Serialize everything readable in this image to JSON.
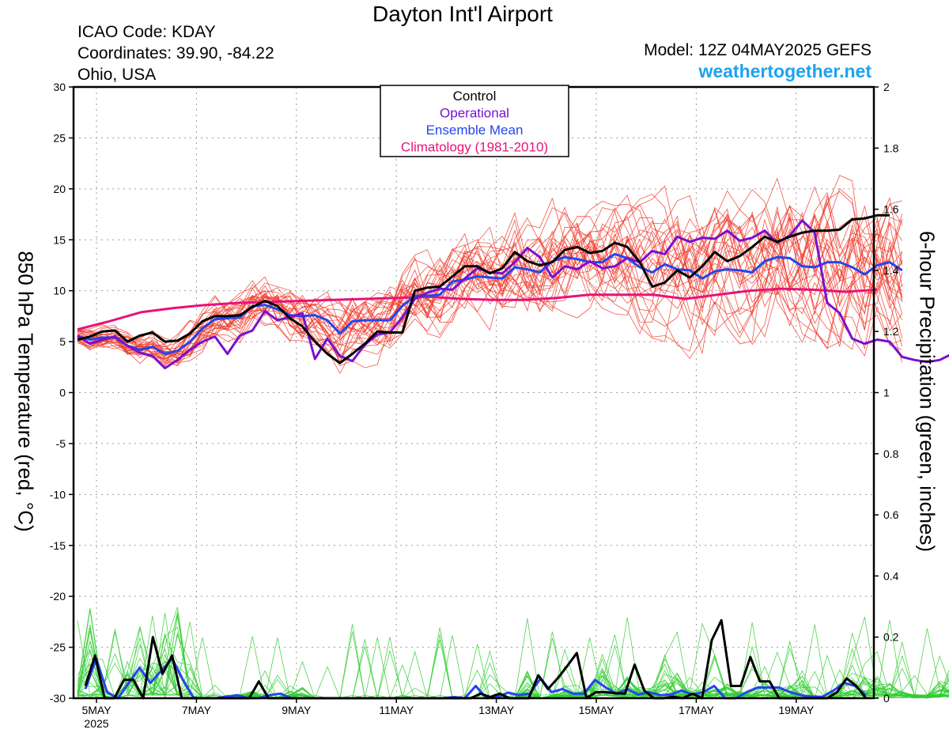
{
  "header": {
    "title": "Dayton Int'l Airport",
    "icao": "ICAO Code: KDAY",
    "coords": "Coordinates: 39.90, -84.22",
    "region": "Ohio, USA",
    "model": "Model: 12Z 04MAY2025 GEFS",
    "site": "weathertogether.net"
  },
  "colors": {
    "control": "#000000",
    "operational": "#7a10d0",
    "ensemble_mean": "#2445ee",
    "climatology": "#e8127a",
    "members_temp": "#f03a2a",
    "members_precip": "#33cc33",
    "site": "#1fa2ee"
  },
  "chart_data": {
    "type": "line",
    "x_start": "2025-05-04 12Z",
    "x_step_hours": 6,
    "x_ticks": [
      "5MAY",
      "7MAY",
      "9MAY",
      "11MAY",
      "13MAY",
      "15MAY",
      "17MAY",
      "19MAY"
    ],
    "x_year_label": "2025",
    "ylabel_left": "850 hPa Temperature (red, °C)",
    "ylabel_right": "6-hour Precipitation (green, inches)",
    "ylim_left": [
      -30,
      30
    ],
    "yticks_left": [
      "30",
      "25",
      "20",
      "15",
      "10",
      "5",
      "0",
      "-5",
      "-10",
      "-15",
      "-20",
      "-25",
      "-30"
    ],
    "ylim_right": [
      0,
      2
    ],
    "yticks_right": [
      "2",
      "1.8",
      "1.6",
      "1.4",
      "1.2",
      "1",
      "0.8",
      "0.6",
      "0.4",
      "0.2",
      "0"
    ],
    "grid": true,
    "legend_position": "top-center",
    "legend": [
      "Control",
      "Operational",
      "Ensemble Mean",
      "Climatology (1981-2010)"
    ],
    "temperature_series": [
      {
        "role": "control",
        "name": "Control",
        "values": [
          5.2,
          5.5,
          6,
          6.1,
          5,
          5.6,
          5.9,
          5,
          5.1,
          5.8,
          7,
          7.5,
          7.5,
          7.6,
          8.4,
          9,
          8.5,
          7.3,
          6.5,
          5,
          3.8,
          2.9,
          3.8,
          4.8,
          6,
          5.9,
          5.9,
          10,
          10.3,
          10.4,
          11.4,
          12.4,
          12.4,
          11.7,
          12.2,
          13.8,
          12.9,
          12.5,
          12.8,
          14,
          14.3,
          13.7,
          13.9,
          14.7,
          14.3,
          12.8,
          10.4,
          10.8,
          12,
          11.3,
          12.4,
          13.8,
          12.9,
          13.4,
          14.3,
          15.3,
          14.8,
          15.3,
          15.7,
          15.9,
          15.9,
          16,
          17,
          17.1,
          17.4,
          17.4
        ]
      },
      {
        "role": "operational",
        "name": "Operational",
        "values": [
          5.6,
          4.8,
          5.2,
          5.5,
          4.6,
          3.9,
          3.6,
          2.4,
          3.2,
          4.2,
          5,
          5.5,
          3.8,
          5.6,
          6.1,
          8,
          7.1,
          7.4,
          7.8,
          3.3,
          5.3,
          3.6,
          3.1,
          4.7,
          5.7,
          5.9,
          7.4,
          9.2,
          9.8,
          10.2,
          10.1,
          11.2,
          12.2,
          11.8,
          11.7,
          12.8,
          14.2,
          13.3,
          11.3,
          12.4,
          12.1,
          12.9,
          12.2,
          12.4,
          13.2,
          12.8,
          13.9,
          13.6,
          15.3,
          14.8,
          15.2,
          15.1,
          15.9,
          14.9,
          15.2,
          15.9,
          14.7,
          15.4,
          16.9,
          15.7,
          8.8,
          7.8,
          5.3,
          4.8,
          5.2,
          5,
          3.5,
          3.2,
          3,
          3.2,
          3.8
        ]
      },
      {
        "role": "ensemble_mean",
        "name": "Ensemble Mean",
        "values": [
          5.5,
          5.2,
          5.4,
          5.4,
          4.6,
          4.2,
          4.5,
          3.8,
          4.1,
          5,
          6.3,
          7.2,
          7.3,
          7.4,
          8.5,
          8.6,
          8.2,
          7.6,
          7.5,
          7.6,
          7.1,
          5.8,
          7,
          7.1,
          7.1,
          7.1,
          8.5,
          9.5,
          9.5,
          9.6,
          10.9,
          11.1,
          11.4,
          11.3,
          11.2,
          12.3,
          12.1,
          11.8,
          12.9,
          13.3,
          13.1,
          12.8,
          12.8,
          13.6,
          13.2,
          12.3,
          11.8,
          12.6,
          12.1,
          12,
          11.2,
          11.9,
          12.1,
          12,
          11.8,
          12.9,
          13.3,
          13.2,
          12.4,
          12.3,
          12.8,
          12.8,
          12.3,
          11.6,
          12.5,
          12.8,
          12
        ]
      },
      {
        "role": "climatology",
        "name": "Climatology (1981-2010)",
        "values": [
          6.2,
          7,
          7.9,
          8.3,
          8.6,
          8.8,
          8.9,
          9,
          9.1,
          9.2,
          9.3,
          9.4,
          9.2,
          9.1,
          9.1,
          9.3,
          9.6,
          9.6,
          9.6,
          9.2,
          9.6,
          10,
          10.2,
          10.1,
          9.9,
          10.1
        ]
      }
    ],
    "precipitation_series": [
      {
        "role": "control",
        "name": "Control",
        "values": [
          0.04,
          0.14,
          0,
          0,
          0.06,
          0.06,
          0,
          0.2,
          0.08,
          0.14,
          0,
          0,
          0,
          0,
          0,
          0,
          0,
          0,
          0.055,
          0,
          0,
          0,
          0,
          0,
          0,
          0,
          0,
          0,
          0,
          0,
          0,
          0,
          0,
          0,
          0,
          0,
          0,
          0,
          0,
          0,
          0,
          0.015,
          0.004,
          0.015,
          0,
          0,
          0,
          0.075,
          0.03,
          0.065,
          0.105,
          0.148,
          0,
          0.02,
          0.02,
          0.016,
          0.015,
          0.11,
          0.025,
          0,
          0,
          0.005,
          0,
          0.015,
          0,
          0.19,
          0.255,
          0.04,
          0.04,
          0.135,
          0.055,
          0.055,
          0,
          0,
          0,
          0,
          0,
          0,
          0.02,
          0.065,
          0.04,
          0
        ]
      },
      {
        "role": "ensemble_mean",
        "name": "Ensemble Mean",
        "values": [
          0.03,
          0.13,
          0.02,
          0,
          0.05,
          0.1,
          0.05,
          0.09,
          0.13,
          0.06,
          0,
          0,
          0,
          0.005,
          0.01,
          0,
          0,
          0.01,
          0.015,
          0,
          0,
          0,
          0,
          0,
          0,
          0,
          0,
          0,
          0,
          0,
          0,
          0,
          0,
          0,
          0.004,
          0,
          0.04,
          0,
          0.005,
          0.018,
          0.01,
          0.015,
          0.065,
          0.02,
          0.03,
          0.015,
          0.015,
          0.06,
          0.035,
          0.015,
          0.03,
          0.012,
          0.02,
          0.01,
          0.012,
          0.025,
          0.012,
          0.02,
          0.04,
          0,
          0,
          0.02,
          0.035,
          0.035,
          0.035,
          0.02,
          0.01,
          0.005,
          0.005,
          0.025,
          0.05,
          0.04,
          0.01
        ]
      }
    ]
  }
}
